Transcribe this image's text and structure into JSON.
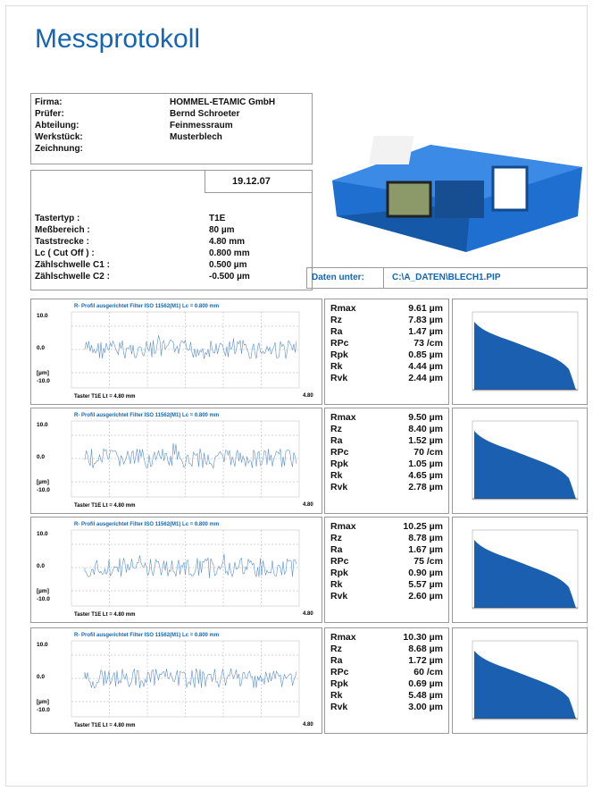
{
  "header": {
    "title": "Messprotokoll"
  },
  "info": {
    "rows": [
      [
        "Firma:",
        "HOMMEL-ETAMIC GmbH"
      ],
      [
        "Prüfer:",
        "Bernd Schroeter"
      ],
      [
        "Abteilung:",
        "Feinmessraum"
      ],
      [
        "Werkstück:",
        "Musterblech"
      ],
      [
        "Zeichnung:"
      ]
    ]
  },
  "date": "19.12.07",
  "settings": {
    "rows": [
      [
        "Tastertyp :",
        "T1E"
      ],
      [
        "Meßbereich :",
        "80 µm"
      ],
      [
        "Taststrecke :",
        "4.80 mm"
      ],
      [
        "Lc  ( Cut Off ) :",
        "0.800 mm"
      ],
      [
        "Zählschwelle C1 :",
        "0.500 µm"
      ],
      [
        "Zählschwelle C2 :",
        "-0.500 µm"
      ]
    ]
  },
  "data_location": {
    "label": "Daten unter:",
    "path": "C:\\A_DATEN\\BLECH1.PIP"
  },
  "measurements": [
    {
      "profile": {
        "title": "R- Profil ausgerichtet Filter ISO 11562(M1) Lc = 0.800 mm",
        "y_labels": [
          "10.0",
          "0.0",
          "[µm]",
          "-10.0"
        ],
        "footer": "Taster T1E   Lt = 4.80 mm",
        "x_end": "4.80"
      },
      "parameters": [
        [
          "Rmax",
          "9.61 µm"
        ],
        [
          "Rz",
          "7.83 µm"
        ],
        [
          "Ra",
          "1.47 µm"
        ],
        [
          "RPc",
          "73 /cm"
        ],
        [
          "Rpk",
          "0.85 µm"
        ],
        [
          "Rk",
          "4.44 µm"
        ],
        [
          "Rvk",
          "2.44 µm"
        ]
      ]
    },
    {
      "profile": {
        "title": "R- Profil ausgerichtet Filter ISO 11562(M1) Lc = 0.800 mm",
        "y_labels": [
          "10.0",
          "0.0",
          "[µm]",
          "-10.0"
        ],
        "footer": "Taster T1E   Lt = 4.80 mm",
        "x_end": "4.80"
      },
      "parameters": [
        [
          "Rmax",
          "9.50 µm"
        ],
        [
          "Rz",
          "8.40 µm"
        ],
        [
          "Ra",
          "1.52 µm"
        ],
        [
          "RPc",
          "70 /cm"
        ],
        [
          "Rpk",
          "1.05 µm"
        ],
        [
          "Rk",
          "4.65 µm"
        ],
        [
          "Rvk",
          "2.78 µm"
        ]
      ]
    },
    {
      "profile": {
        "title": "R- Profil ausgerichtet Filter ISO 11562(M1) Lc = 0.800 mm",
        "y_labels": [
          "10.0",
          "0.0",
          "[µm]",
          "-10.0"
        ],
        "footer": "Taster T1E   Lt = 4.80 mm",
        "x_end": "4.80"
      },
      "parameters": [
        [
          "Rmax",
          "10.25 µm"
        ],
        [
          "Rz",
          "8.78 µm"
        ],
        [
          "Ra",
          "1.67 µm"
        ],
        [
          "RPc",
          "75 /cm"
        ],
        [
          "Rpk",
          "0.90 µm"
        ],
        [
          "Rk",
          "5.57 µm"
        ],
        [
          "Rvk",
          "2.60 µm"
        ]
      ]
    },
    {
      "profile": {
        "title": "R- Profil ausgerichtet Filter ISO 11562(M1) Lc = 0.800 mm",
        "y_labels": [
          "10.0",
          "0.0",
          "[µm]",
          "-10.0"
        ],
        "footer": "Taster T1E   Lt = 4.80 mm",
        "x_end": "4.80"
      },
      "parameters": [
        [
          "Rmax",
          "10.30 µm"
        ],
        [
          "Rz",
          "8.68 µm"
        ],
        [
          "Ra",
          "1.72 µm"
        ],
        [
          "RPc",
          "60 /cm"
        ],
        [
          "Rpk",
          "0.69 µm"
        ],
        [
          "Rk",
          "5.48 µm"
        ],
        [
          "Rvk",
          "3.00 µm"
        ]
      ]
    }
  ]
}
